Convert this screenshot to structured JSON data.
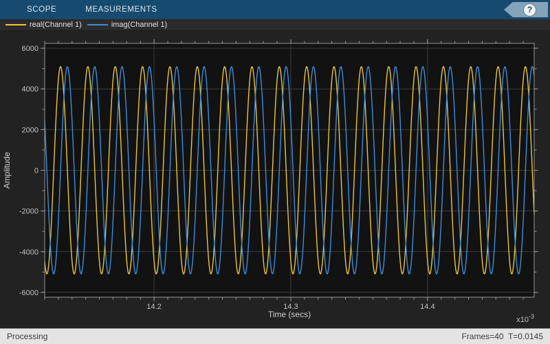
{
  "toolbar": {
    "tabs": [
      {
        "label": "SCOPE"
      },
      {
        "label": "MEASUREMENTS"
      }
    ],
    "help_label": "?",
    "bg_color": "#174a6f"
  },
  "legend": {
    "items": [
      {
        "label": "real(Channel 1)",
        "color": "#ecc63e"
      },
      {
        "label": "imag(Channel 1)",
        "color": "#3c8ede"
      }
    ]
  },
  "chart_data": {
    "type": "line",
    "title": "",
    "xlabel": "Time (secs)",
    "ylabel": "Amplitude",
    "x_scale_label": {
      "mantissa": "x10",
      "exponent": "-3"
    },
    "xlim_ms": [
      14.12,
      14.478
    ],
    "ylim": [
      -6240,
      6240
    ],
    "xticks": [
      14.2,
      14.3,
      14.4
    ],
    "xtick_labels": [
      "14.2",
      "14.3",
      "14.4"
    ],
    "x_minor_step": 0.01,
    "yticks": [
      -6000,
      -4000,
      -2000,
      0,
      2000,
      4000,
      6000
    ],
    "ytick_labels": [
      "-6000",
      "-4000",
      "-2000",
      "0",
      "2000",
      "4000",
      "6000"
    ],
    "y_minor_step": 1000,
    "grid": "major",
    "legend_position": "top-left-bar",
    "series": [
      {
        "name": "real(Channel 1)",
        "color": "#ecc63e",
        "waveform": "sine",
        "amplitude": 5100,
        "frequency_hz": 50000,
        "peak_time_ms": 14.1316
      },
      {
        "name": "imag(Channel 1)",
        "color": "#3c8ede",
        "waveform": "sine",
        "amplitude": 5100,
        "frequency_hz": 50000,
        "peak_time_ms": 14.1366
      }
    ],
    "colors": {
      "plot_bg": "#121212",
      "outer_bg": "#222222",
      "grid": "#3d3d3d",
      "axis": "#969696",
      "tick_label": "#c2c2c2",
      "axis_label": "#cfcfcf"
    }
  },
  "status_bar": {
    "left": "Processing",
    "right": "Frames=40  T=0.0145"
  }
}
